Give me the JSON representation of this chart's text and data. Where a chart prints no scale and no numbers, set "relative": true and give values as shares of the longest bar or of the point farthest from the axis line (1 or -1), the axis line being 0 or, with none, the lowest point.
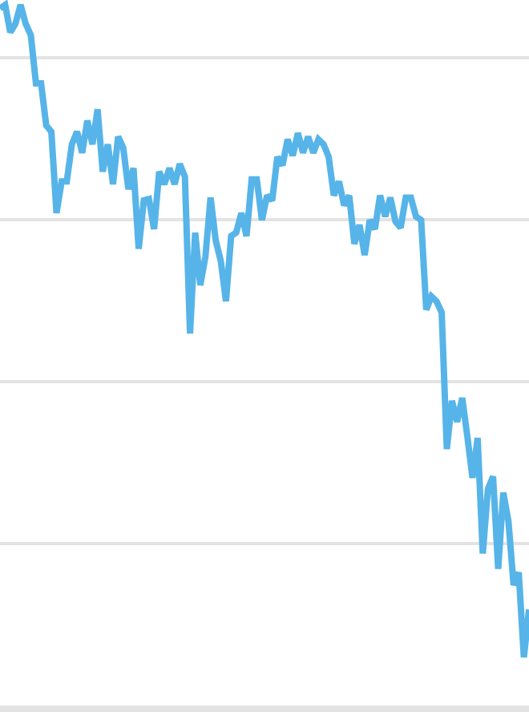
{
  "chart_data": {
    "type": "line",
    "relative": true,
    "grid": "y",
    "line_style": "solid",
    "marker": "none",
    "categories": [
      null,
      null,
      null,
      null,
      null,
      null,
      null,
      null,
      null,
      null,
      null,
      null,
      null,
      null,
      null,
      null,
      null,
      null,
      null,
      null,
      null,
      null,
      null,
      null,
      null,
      null,
      null,
      null,
      null,
      null,
      null,
      null,
      null,
      null,
      null,
      null,
      null,
      null,
      null,
      null,
      null,
      null,
      null,
      null,
      null,
      null,
      null,
      null,
      null,
      null,
      null,
      null,
      null,
      null,
      null,
      null,
      null,
      null,
      null,
      null,
      null,
      null,
      null,
      null,
      null,
      null,
      null,
      null,
      null,
      null,
      null,
      null,
      null,
      null,
      null,
      null,
      null,
      null,
      null,
      null,
      null,
      null,
      null,
      null,
      null,
      null,
      null,
      null,
      null,
      null,
      null,
      null,
      null,
      null,
      null,
      null,
      null,
      null,
      null,
      null,
      null,
      null,
      null,
      null
    ],
    "series": [
      {
        "color": "#56b4e9",
        "values": [
          0.995,
          1.0,
          0.961,
          0.973,
          1.0,
          0.973,
          0.957,
          0.888,
          0.888,
          0.828,
          0.819,
          0.703,
          0.748,
          0.748,
          0.801,
          0.819,
          0.789,
          0.835,
          0.801,
          0.851,
          0.762,
          0.801,
          0.744,
          0.812,
          0.796,
          0.737,
          0.767,
          0.652,
          0.721,
          0.723,
          0.68,
          0.762,
          0.744,
          0.767,
          0.744,
          0.773,
          0.755,
          0.531,
          0.675,
          0.6,
          0.641,
          0.725,
          0.664,
          0.634,
          0.577,
          0.67,
          0.675,
          0.703,
          0.67,
          0.751,
          0.751,
          0.693,
          0.728,
          0.721,
          0.783,
          0.771,
          0.808,
          0.785,
          0.817,
          0.789,
          0.812,
          0.789,
          0.808,
          0.801,
          0.783,
          0.728,
          0.748,
          0.714,
          0.728,
          0.659,
          0.686,
          0.643,
          0.693,
          0.68,
          0.728,
          0.698,
          0.725,
          0.691,
          0.682,
          0.725,
          0.725,
          0.698,
          0.693,
          0.565,
          0.584,
          0.577,
          0.561,
          0.366,
          0.435,
          0.405,
          0.439,
          0.384,
          0.325,
          0.382,
          0.217,
          0.309,
          0.327,
          0.195,
          0.304,
          0.263,
          0.172,
          0.19,
          0.069,
          0.137
        ]
      }
    ]
  }
}
